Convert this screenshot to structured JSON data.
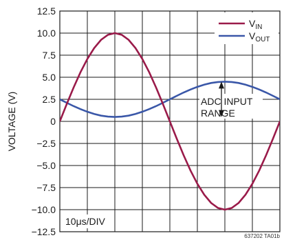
{
  "chart_data": {
    "type": "line",
    "ylabel": "VOLTAGE (V)",
    "xlabel": "",
    "title": "",
    "ylim": [
      -12.5,
      12.5
    ],
    "y_ticks": [
      "12.5",
      "10.0",
      "7.5",
      "5.0",
      "2.5",
      "0",
      "−2.5",
      "−5.0",
      "−7.5",
      "−10.0",
      "−12.5"
    ],
    "x_divisions": 8,
    "x_time_per_div_us": 10,
    "grid": true,
    "legend_position": "top-right",
    "series": [
      {
        "name_main": "V",
        "name_sub": "IN",
        "color": "#9a1b4a",
        "x": [
          0,
          2.5,
          5,
          7.5,
          10,
          12.5,
          15,
          17.5,
          20,
          22.5,
          25,
          27.5,
          30,
          32.5,
          35,
          37.5,
          40,
          42.5,
          45,
          47.5,
          50,
          52.5,
          55,
          57.5,
          60,
          62.5,
          65,
          67.5,
          70,
          72.5,
          75,
          77.5,
          80
        ],
        "values": [
          0,
          1.95,
          3.83,
          5.56,
          7.07,
          8.31,
          9.24,
          9.81,
          10,
          9.81,
          9.24,
          8.31,
          7.07,
          5.56,
          3.83,
          1.95,
          0,
          -1.95,
          -3.83,
          -5.56,
          -7.07,
          -8.31,
          -9.24,
          -9.81,
          -10,
          -9.81,
          -9.24,
          -8.31,
          -7.07,
          -5.56,
          -3.83,
          -1.95,
          0
        ]
      },
      {
        "name_main": "V",
        "name_sub": "OUT",
        "color": "#3a57a8",
        "x": [
          0,
          2.5,
          5,
          7.5,
          10,
          12.5,
          15,
          17.5,
          20,
          22.5,
          25,
          27.5,
          30,
          32.5,
          35,
          37.5,
          40,
          42.5,
          45,
          47.5,
          50,
          52.5,
          55,
          57.5,
          60,
          62.5,
          65,
          67.5,
          70,
          72.5,
          75,
          77.5,
          80
        ],
        "values": [
          2.5,
          2.11,
          1.73,
          1.39,
          1.09,
          0.84,
          0.65,
          0.54,
          0.5,
          0.54,
          0.65,
          0.84,
          1.09,
          1.39,
          1.73,
          2.11,
          2.5,
          2.89,
          3.27,
          3.61,
          3.91,
          4.16,
          4.35,
          4.46,
          4.5,
          4.46,
          4.35,
          4.16,
          3.91,
          3.61,
          3.27,
          2.89,
          2.5
        ]
      }
    ],
    "annotations": {
      "adc_line1": "ADC INPUT",
      "adc_line2": "RANGE",
      "adc_top": 4.5,
      "adc_bottom": 0.5,
      "adc_x": 60,
      "time_div": "10μs/DIV",
      "ref_code": "637202 TA01b"
    }
  }
}
